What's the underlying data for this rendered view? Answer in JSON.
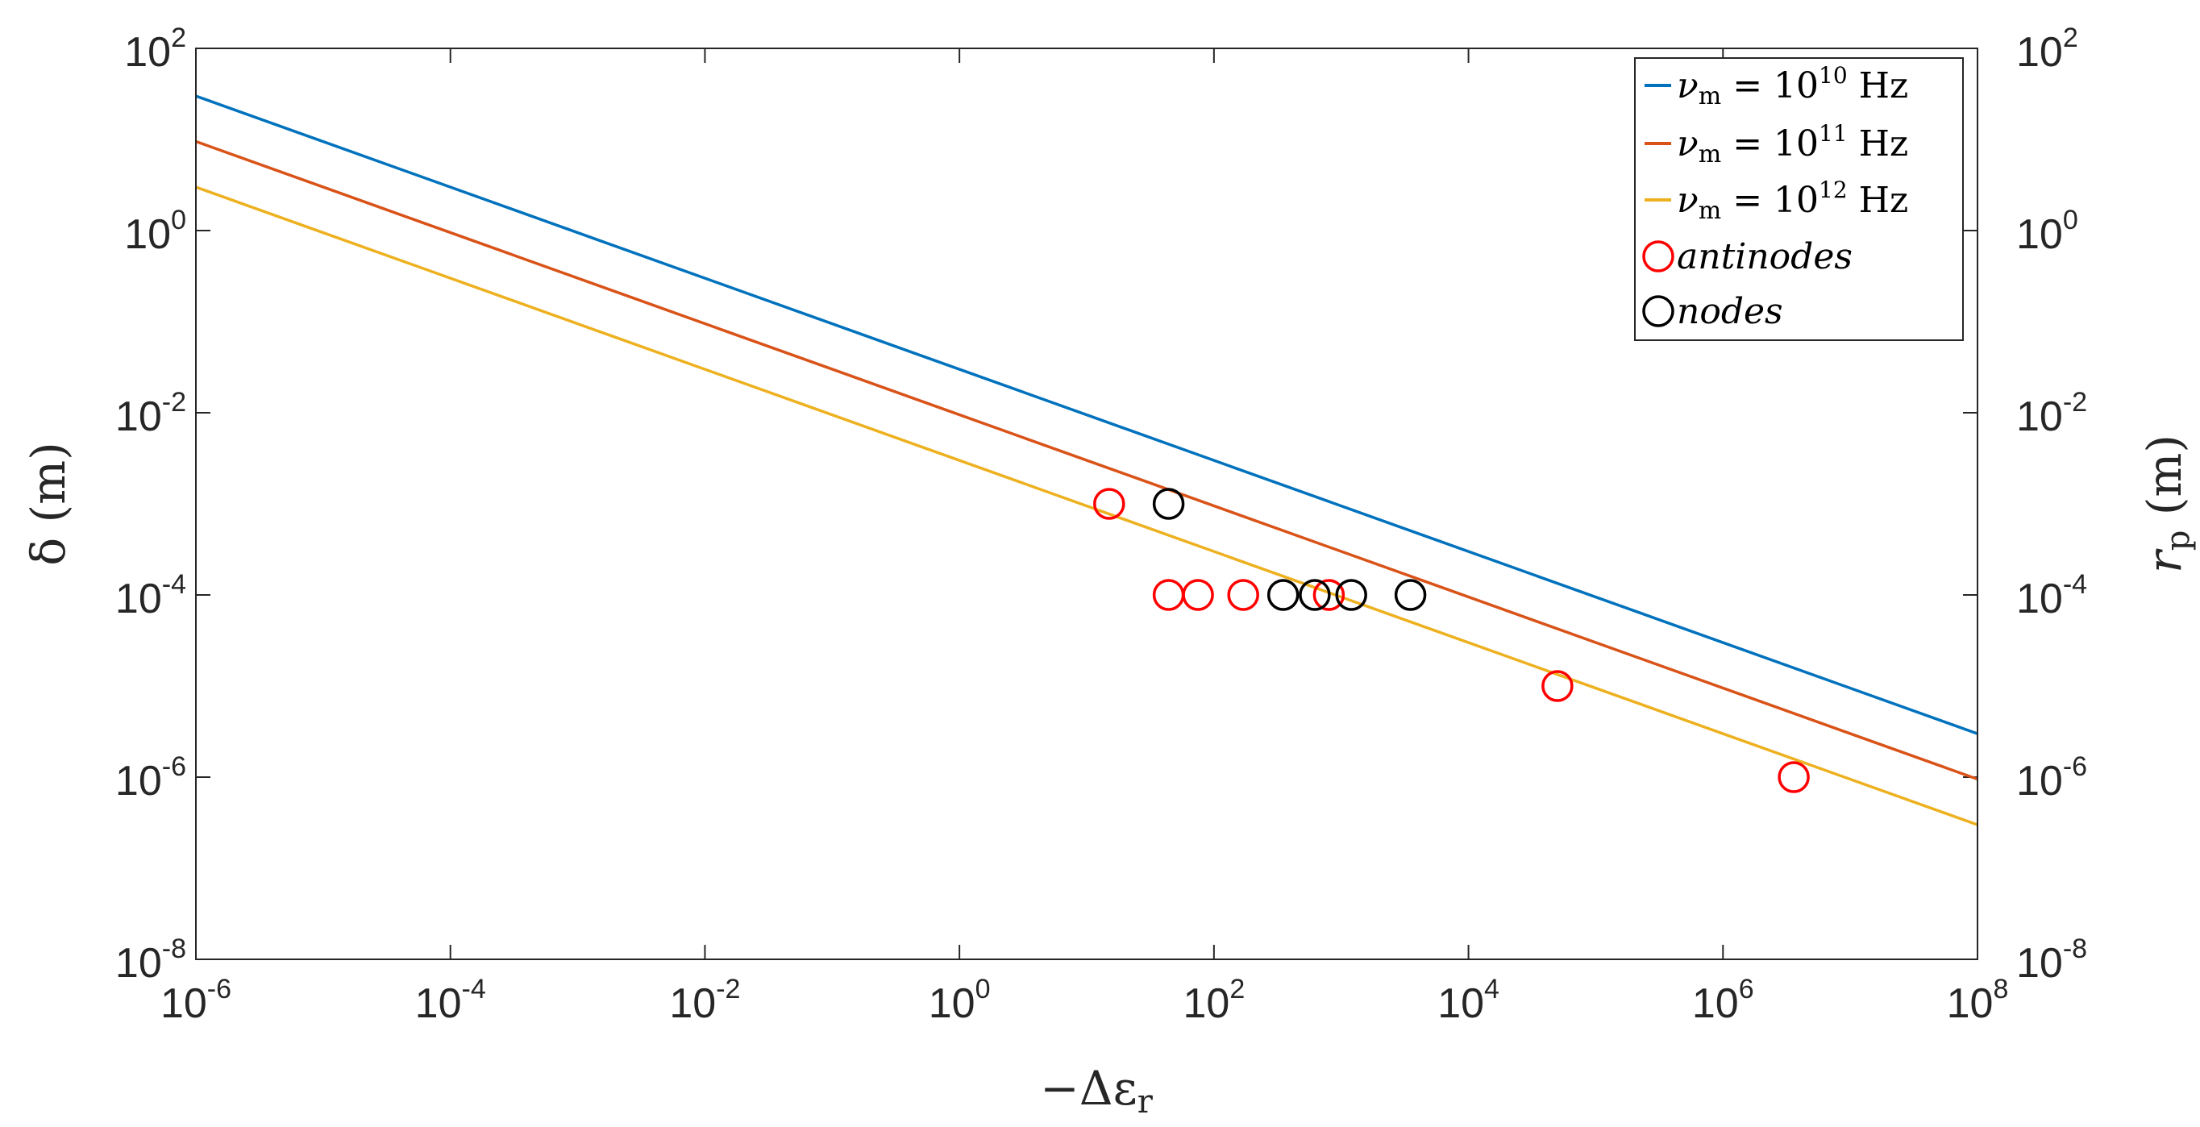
{
  "chart_data": {
    "type": "line",
    "x_scale": "log",
    "y_scale": "log",
    "xlim": [
      1e-06,
      100000000.0
    ],
    "ylim": [
      1e-08,
      100
    ],
    "x_ticks": [
      {
        "base": "10",
        "exp": "-6",
        "value": 1e-06
      },
      {
        "base": "10",
        "exp": "-4",
        "value": 0.0001
      },
      {
        "base": "10",
        "exp": "-2",
        "value": 0.01
      },
      {
        "base": "10",
        "exp": "0",
        "value": 1
      },
      {
        "base": "10",
        "exp": "2",
        "value": 100
      },
      {
        "base": "10",
        "exp": "4",
        "value": 10000.0
      },
      {
        "base": "10",
        "exp": "6",
        "value": 1000000.0
      },
      {
        "base": "10",
        "exp": "8",
        "value": 100000000.0
      }
    ],
    "y_ticks": [
      {
        "base": "10",
        "exp": "-8",
        "value": 1e-08
      },
      {
        "base": "10",
        "exp": "-6",
        "value": 1e-06
      },
      {
        "base": "10",
        "exp": "-4",
        "value": 0.0001
      },
      {
        "base": "10",
        "exp": "-2",
        "value": 0.01
      },
      {
        "base": "10",
        "exp": "0",
        "value": 1
      },
      {
        "base": "10",
        "exp": "2",
        "value": 100
      }
    ],
    "xlabel": {
      "prefix": "−Δε",
      "sub": "r"
    },
    "ylabel_left": {
      "text": "δ (m)"
    },
    "ylabel_right": {
      "main": "r",
      "sub": "p",
      "suffix": " (m)"
    },
    "series": [
      {
        "name": "νm = 10^10 Hz",
        "legend": {
          "nu": "ν",
          "sub": "m",
          "mid": " = 10",
          "exp": "10",
          "unit": " Hz"
        },
        "color": "#0072BD",
        "x": [
          1e-06,
          100000000.0
        ],
        "y": [
          30,
          3e-06
        ]
      },
      {
        "name": "νm = 10^11 Hz",
        "legend": {
          "nu": "ν",
          "sub": "m",
          "mid": " = 10",
          "exp": "11",
          "unit": " Hz"
        },
        "color": "#D95319",
        "x": [
          1e-06,
          100000000.0
        ],
        "y": [
          9.5,
          9.5e-07
        ]
      },
      {
        "name": "νm = 10^12 Hz",
        "legend": {
          "nu": "ν",
          "sub": "m",
          "mid": " = 10",
          "exp": "12",
          "unit": " Hz"
        },
        "color": "#EDB120",
        "x": [
          1e-06,
          100000000.0
        ],
        "y": [
          3,
          3e-07
        ]
      }
    ],
    "markers": [
      {
        "name": "antinodes",
        "color": "#FF0000",
        "points": [
          [
            15,
            0.001
          ],
          [
            44,
            0.0001
          ],
          [
            75,
            0.0001
          ],
          [
            170,
            0.0001
          ],
          [
            800,
            0.0001
          ],
          [
            50000,
            1e-05
          ],
          [
            3600000,
            1e-06
          ]
        ]
      },
      {
        "name": "nodes",
        "color": "#000000",
        "points": [
          [
            44,
            0.001
          ],
          [
            350,
            0.0001
          ],
          [
            620,
            0.0001
          ],
          [
            1200,
            0.0001
          ],
          [
            3500,
            0.0001
          ]
        ]
      }
    ],
    "legend_position": "top-right"
  }
}
